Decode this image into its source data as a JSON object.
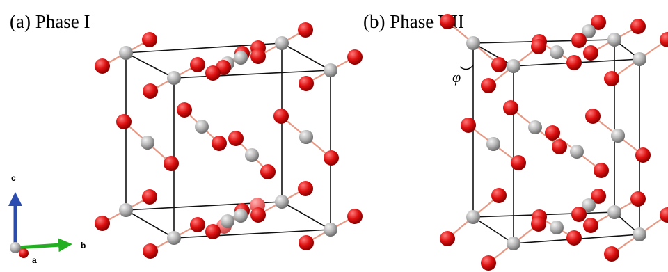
{
  "panels": [
    {
      "id": "phase-1",
      "label": "(a) Phase I"
    },
    {
      "id": "phase-7",
      "label": "(b) Phase VII",
      "angle_label": "φ"
    }
  ],
  "axes": {
    "a": "a",
    "b": "b",
    "c": "c"
  },
  "colors": {
    "carbon": "#b4b4b4",
    "oxygen": "#e01010",
    "oxygen_far": "#f06a6a",
    "bond": "#e69a86",
    "cell_edge": "#111111",
    "axis_a": "#b81010",
    "axis_b": "#22b022",
    "axis_c": "#2a4cb0"
  }
}
